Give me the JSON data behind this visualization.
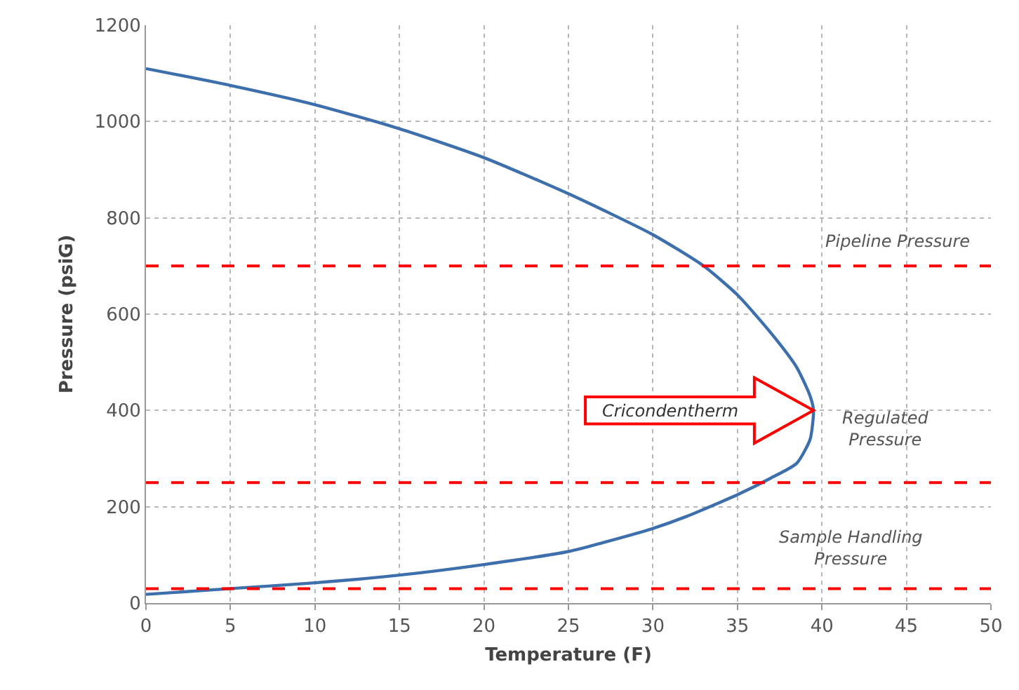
{
  "chart_data": {
    "type": "line",
    "xlabel": "Temperature (F)",
    "ylabel": "Pressure (psiG)",
    "series": [
      {
        "color": "#3e6fad",
        "x": [
          0,
          5,
          10,
          15,
          20,
          25,
          30,
          33,
          35,
          37,
          38.5,
          39.3,
          39.5,
          39.3,
          38.5,
          37,
          35,
          32,
          30,
          27,
          25,
          20,
          15,
          10,
          5,
          0
        ],
        "values": [
          1110,
          1075,
          1035,
          985,
          925,
          850,
          765,
          700,
          640,
          560,
          490,
          430,
          400,
          340,
          290,
          260,
          225,
          180,
          155,
          125,
          107,
          80,
          58,
          42,
          30,
          18
        ]
      }
    ],
    "xlim": [
      0,
      50
    ],
    "xticks": [
      0,
      5,
      10,
      15,
      20,
      25,
      30,
      35,
      40,
      45,
      50
    ],
    "ylim": [
      0,
      1200
    ],
    "yticks": [
      0,
      200,
      400,
      600,
      800,
      1000,
      1200
    ],
    "ref_lines": [
      {
        "axis": "y",
        "value": 700,
        "label": "Pipeline Pressure",
        "color": "#ff0000",
        "line_style": "dashed"
      },
      {
        "axis": "y",
        "value": 250,
        "color": "#ff0000",
        "line_style": "dashed"
      },
      {
        "axis": "y",
        "value": 30,
        "color": "#ff0000",
        "line_style": "dashed"
      }
    ],
    "annotations": [
      "Cricondentherm",
      "Regulated Pressure",
      "Sample Handling Pressure"
    ],
    "grid": true,
    "marker": "none",
    "line_style": "solid"
  }
}
